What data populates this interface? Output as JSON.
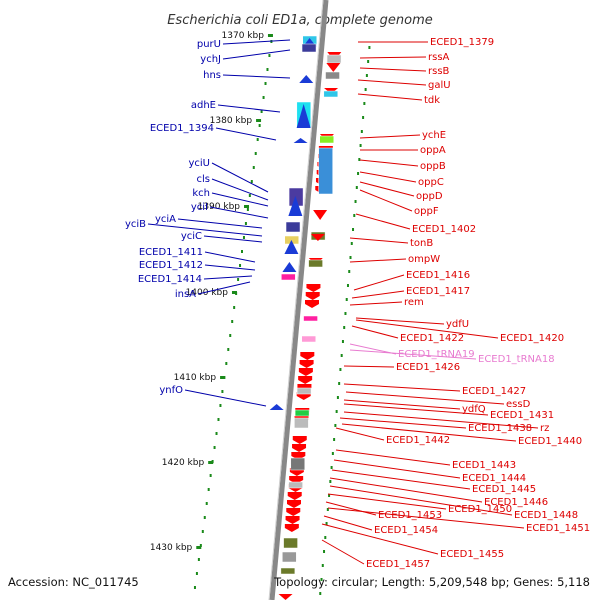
{
  "title": "Escherichia coli ED1a, complete genome",
  "footer": {
    "accession": "Accession: NC_011745",
    "summary": "Topology: circular; Length: 5,209,548 bp; Genes: 5,118"
  },
  "colors": {
    "minus_label": "#0000aa",
    "plus_label": "#dd0000",
    "rna_label": "#e87bd0",
    "backbone": "#888888",
    "tick": "#1a8a1a"
  },
  "chart_data": {
    "type": "genome-map",
    "range_kbp": [
      1367,
      1433
    ],
    "kbp_ticks": [
      {
        "label": "1370 kbp"
      },
      {
        "label": "1380 kbp"
      },
      {
        "label": "1390 kbp"
      },
      {
        "label": "1400 kbp"
      },
      {
        "label": "1410 kbp"
      },
      {
        "label": "1420 kbp"
      },
      {
        "label": "1430 kbp"
      }
    ],
    "left_labels": [
      {
        "text": "purU"
      },
      {
        "text": "ychJ"
      },
      {
        "text": "hns"
      },
      {
        "text": "adhE"
      },
      {
        "text": "ECED1_1394"
      },
      {
        "text": "yciU"
      },
      {
        "text": "cls"
      },
      {
        "text": "kch"
      },
      {
        "text": "yciI"
      },
      {
        "text": "yciA"
      },
      {
        "text": "yciB"
      },
      {
        "text": "yciC"
      },
      {
        "text": "ECED1_1411"
      },
      {
        "text": "ECED1_1412"
      },
      {
        "text": "ECED1_1414"
      },
      {
        "text": "insA"
      },
      {
        "text": "ynfO"
      }
    ],
    "right_labels": [
      {
        "text": "ECED1_1379"
      },
      {
        "text": "rssA"
      },
      {
        "text": "rssB"
      },
      {
        "text": "galU"
      },
      {
        "text": "tdk"
      },
      {
        "text": "ychE"
      },
      {
        "text": "oppA"
      },
      {
        "text": "oppB"
      },
      {
        "text": "oppC"
      },
      {
        "text": "oppD"
      },
      {
        "text": "oppF"
      },
      {
        "text": "ECED1_1402"
      },
      {
        "text": "tonB"
      },
      {
        "text": "ompW"
      },
      {
        "text": "ECED1_1416"
      },
      {
        "text": "ECED1_1417"
      },
      {
        "text": "rem"
      },
      {
        "text": "ydfU"
      },
      {
        "text": "ECED1_1422"
      },
      {
        "text": "ECED1_1420"
      },
      {
        "text": "ECED1_tRNA19"
      },
      {
        "text": "ECED1_tRNA18"
      },
      {
        "text": "ECED1_1426"
      },
      {
        "text": "ECED1_1427"
      },
      {
        "text": "essD"
      },
      {
        "text": "ydfQ"
      },
      {
        "text": "ECED1_1431"
      },
      {
        "text": "rz"
      },
      {
        "text": "ECED1_1438"
      },
      {
        "text": "ECED1_1442"
      },
      {
        "text": "ECED1_1440"
      },
      {
        "text": "ECED1_1443"
      },
      {
        "text": "ECED1_1444"
      },
      {
        "text": "ECED1_1445"
      },
      {
        "text": "ECED1_1446"
      },
      {
        "text": "ECED1_1448"
      },
      {
        "text": "ECED1_1450"
      },
      {
        "text": "ECED1_1453"
      },
      {
        "text": "ECED1_1451"
      },
      {
        "text": "ECED1_1454"
      },
      {
        "text": "ECED1_1455"
      },
      {
        "text": "ECED1_1457"
      }
    ]
  }
}
